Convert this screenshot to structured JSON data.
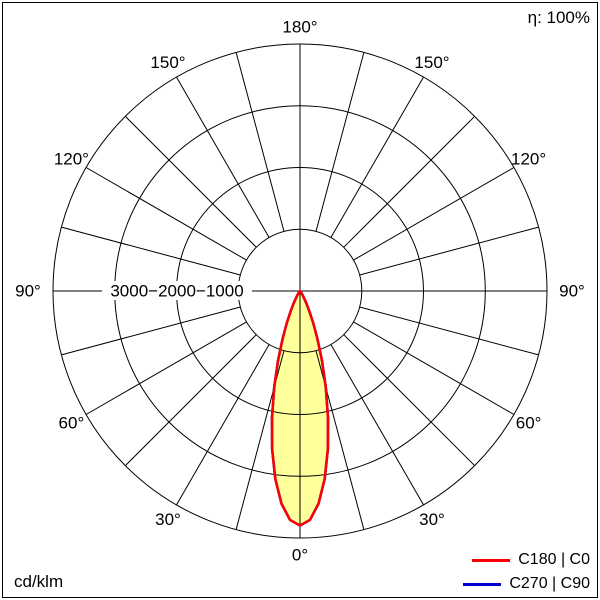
{
  "header": {
    "efficiency": "η: 100%"
  },
  "footer": {
    "unit": "cd/klm"
  },
  "legend": {
    "items": [
      {
        "label": "C180 | C0",
        "color": "#ff0000"
      },
      {
        "label": "C270 | C90",
        "color": "#0000cc"
      }
    ]
  },
  "chart_data": {
    "type": "polar-line",
    "title": "Luminous intensity distribution (polar photometric diagram)",
    "units": "cd/klm",
    "efficiency": "100%",
    "scale_max": 4000,
    "ring_values": [
      1000,
      2000,
      3000
    ],
    "ring_label_text": "3000−2000−1000",
    "angle_step_deg": 15,
    "angle_labels": [
      {
        "text": "0°",
        "angles": [
          0
        ]
      },
      {
        "text": "30°",
        "angles": [
          30,
          -30
        ]
      },
      {
        "text": "60°",
        "angles": [
          60,
          -60
        ]
      },
      {
        "text": "90°",
        "angles": [
          90,
          -90
        ]
      },
      {
        "text": "120°",
        "angles": [
          120,
          -120
        ]
      },
      {
        "text": "150°",
        "angles": [
          150,
          -150
        ]
      },
      {
        "text": "180°",
        "angles": [
          180
        ]
      }
    ],
    "series": [
      {
        "name": "C180 | C0",
        "color": "#ff0000",
        "fill": "#ffff9c",
        "gamma_deg": [
          -35,
          -32.5,
          -30,
          -27.5,
          -25,
          -22.5,
          -20,
          -17.5,
          -15,
          -12.5,
          -10,
          -7.5,
          -5,
          -2.5,
          0,
          2.5,
          5,
          7.5,
          10,
          12.5,
          15,
          17.5,
          20,
          22.5,
          25,
          27.5,
          30,
          32.5,
          35
        ],
        "intensity": [
          36,
          68,
          124,
          214,
          353,
          554,
          830,
          1186,
          1615,
          2098,
          2598,
          3068,
          3455,
          3711,
          3800,
          3711,
          3455,
          3068,
          2598,
          2098,
          1615,
          1186,
          830,
          554,
          353,
          214,
          124,
          68,
          36
        ]
      },
      {
        "name": "C270 | C90",
        "color": "#0000cc",
        "fill": "#ffff9c",
        "gamma_deg": [
          -35,
          -32.5,
          -30,
          -27.5,
          -25,
          -22.5,
          -20,
          -17.5,
          -15,
          -12.5,
          -10,
          -7.5,
          -5,
          -2.5,
          0,
          2.5,
          5,
          7.5,
          10,
          12.5,
          15,
          17.5,
          20,
          22.5,
          25,
          27.5,
          30,
          32.5,
          35
        ],
        "intensity": [
          36,
          68,
          124,
          214,
          353,
          554,
          830,
          1186,
          1615,
          2098,
          2598,
          3068,
          3455,
          3711,
          3800,
          3711,
          3455,
          3068,
          2598,
          2098,
          1615,
          1186,
          830,
          554,
          353,
          214,
          124,
          68,
          36
        ]
      }
    ],
    "layout": {
      "grid": true,
      "zero_angle_position": "bottom",
      "legend_position": "bottom-right"
    }
  }
}
